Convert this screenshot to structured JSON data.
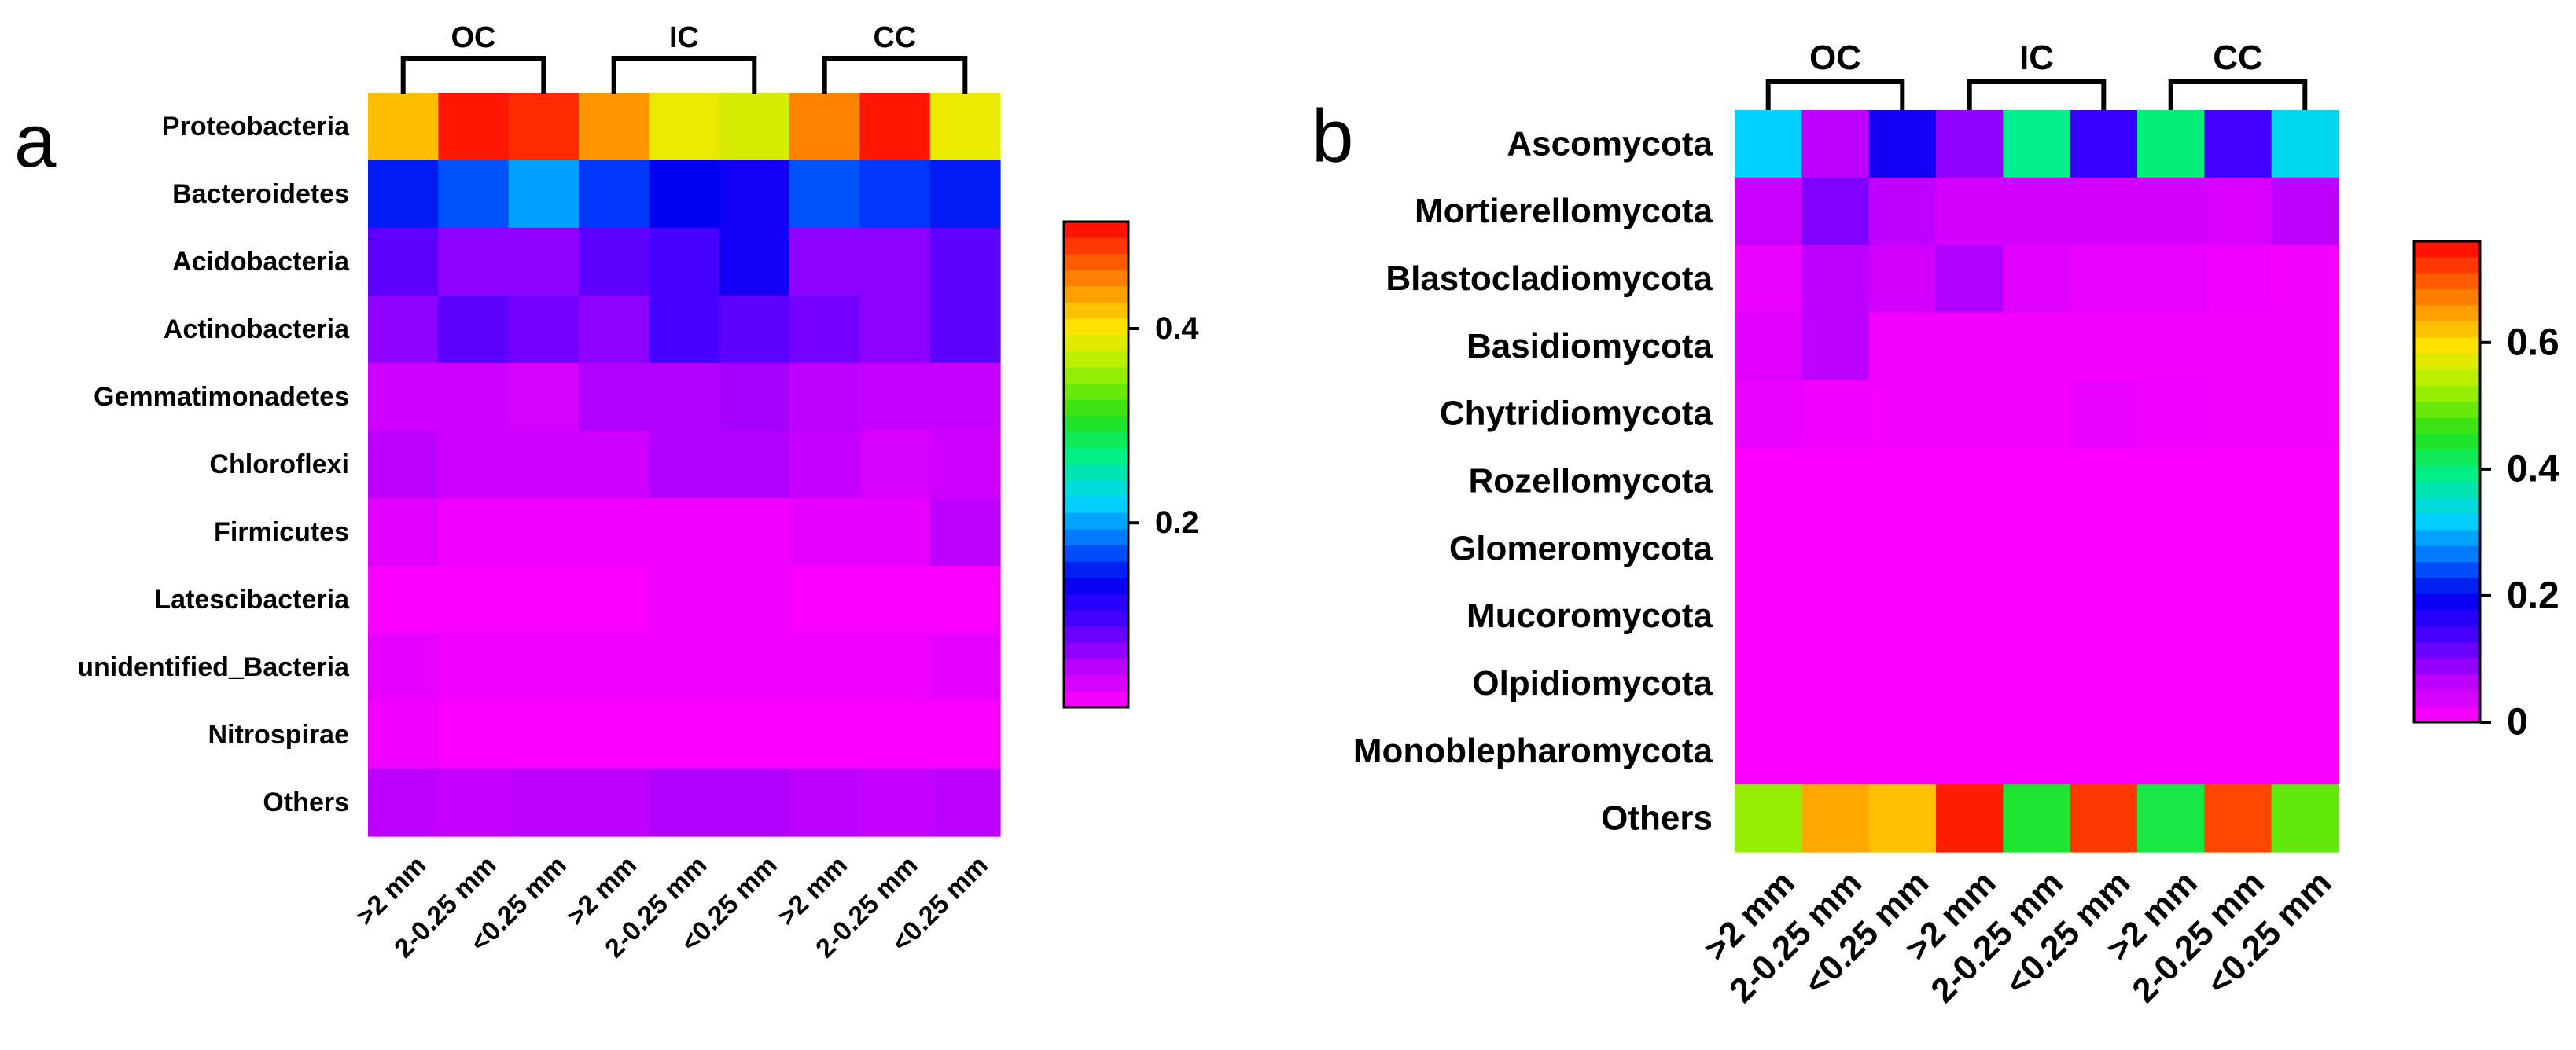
{
  "chart_data": [
    {
      "type": "heatmap",
      "panel_label": "a",
      "groups": [
        "OC",
        "IC",
        "CC"
      ],
      "columns": [
        ">2 mm",
        "2-0.25 mm",
        "<0.25 mm",
        ">2 mm",
        "2-0.25 mm",
        "<0.25 mm",
        ">2 mm",
        "2-0.25 mm",
        "<0.25 mm"
      ],
      "rows": [
        "Proteobacteria",
        "Bacteroidetes",
        "Acidobacteria",
        "Actinobacteria",
        "Gemmatimonadetes",
        "Chloroflexi",
        "Firmicutes",
        "Latescibacteria",
        "unidentified_Bacteria",
        "Nitrospirae",
        "Others"
      ],
      "values": [
        [
          0.42,
          0.5,
          0.49,
          0.44,
          0.39,
          0.38,
          0.45,
          0.5,
          0.39
        ],
        [
          0.15,
          0.17,
          0.2,
          0.16,
          0.14,
          0.13,
          0.17,
          0.16,
          0.15
        ],
        [
          0.09,
          0.07,
          0.07,
          0.09,
          0.1,
          0.13,
          0.07,
          0.07,
          0.09
        ],
        [
          0.07,
          0.09,
          0.08,
          0.07,
          0.1,
          0.09,
          0.08,
          0.07,
          0.09
        ],
        [
          0.04,
          0.04,
          0.035,
          0.055,
          0.055,
          0.06,
          0.05,
          0.045,
          0.045
        ],
        [
          0.05,
          0.04,
          0.04,
          0.04,
          0.055,
          0.055,
          0.045,
          0.035,
          0.04
        ],
        [
          0.03,
          0.02,
          0.02,
          0.02,
          0.02,
          0.02,
          0.025,
          0.025,
          0.05
        ],
        [
          0.015,
          0.015,
          0.015,
          0.015,
          0.02,
          0.02,
          0.015,
          0.015,
          0.015
        ],
        [
          0.025,
          0.02,
          0.02,
          0.02,
          0.02,
          0.02,
          0.02,
          0.02,
          0.025
        ],
        [
          0.02,
          0.015,
          0.015,
          0.015,
          0.015,
          0.015,
          0.015,
          0.015,
          0.015
        ],
        [
          0.05,
          0.045,
          0.05,
          0.05,
          0.055,
          0.055,
          0.05,
          0.045,
          0.05
        ]
      ],
      "colorbar": {
        "min": 0.01,
        "max": 0.51,
        "ticks": [
          0.2,
          0.4
        ],
        "tick_labels": [
          "0.2",
          "0.4"
        ]
      }
    },
    {
      "type": "heatmap",
      "panel_label": "b",
      "groups": [
        "OC",
        "IC",
        "CC"
      ],
      "columns": [
        ">2 mm",
        "2-0.25 mm",
        "<0.25 mm",
        ">2 mm",
        "2-0.25 mm",
        "<0.25 mm",
        ">2 mm",
        "2-0.25 mm",
        "<0.25 mm"
      ],
      "rows": [
        "Ascomycota",
        "Mortierellomycota",
        "Blastocladiomycota",
        "Basidiomycota",
        "Chytridiomycota",
        "Rozellomycota",
        "Glomeromycota",
        "Mucoromycota",
        "Olpidiomycota",
        "Monoblepharomycota",
        "Others"
      ],
      "values": [
        [
          0.32,
          0.06,
          0.18,
          0.09,
          0.39,
          0.15,
          0.4,
          0.14,
          0.33
        ],
        [
          0.05,
          0.1,
          0.06,
          0.04,
          0.04,
          0.04,
          0.04,
          0.035,
          0.06
        ],
        [
          0.02,
          0.06,
          0.04,
          0.07,
          0.03,
          0.02,
          0.02,
          0.015,
          0.01
        ],
        [
          0.03,
          0.06,
          0.01,
          0.01,
          0.01,
          0.01,
          0.01,
          0.01,
          0.01
        ],
        [
          0.02,
          0.015,
          0.01,
          0.01,
          0.01,
          0.02,
          0.015,
          0.01,
          0.01
        ],
        [
          0.005,
          0.005,
          0.005,
          0.005,
          0.005,
          0.005,
          0.005,
          0.005,
          0.005
        ],
        [
          0.005,
          0.005,
          0.005,
          0.005,
          0.005,
          0.005,
          0.005,
          0.005,
          0.005
        ],
        [
          0.005,
          0.005,
          0.005,
          0.005,
          0.005,
          0.005,
          0.005,
          0.005,
          0.005
        ],
        [
          0.005,
          0.005,
          0.005,
          0.005,
          0.005,
          0.005,
          0.005,
          0.005,
          0.005
        ],
        [
          0.005,
          0.005,
          0.005,
          0.005,
          0.005,
          0.005,
          0.005,
          0.005,
          0.005
        ],
        [
          0.52,
          0.64,
          0.62,
          0.74,
          0.44,
          0.72,
          0.43,
          0.71,
          0.49
        ]
      ],
      "colorbar": {
        "min": 0,
        "max": 0.76,
        "ticks": [
          0,
          0.2,
          0.4,
          0.6
        ],
        "tick_labels": [
          "0",
          "0.2",
          "0.4",
          "0.6"
        ]
      }
    }
  ]
}
